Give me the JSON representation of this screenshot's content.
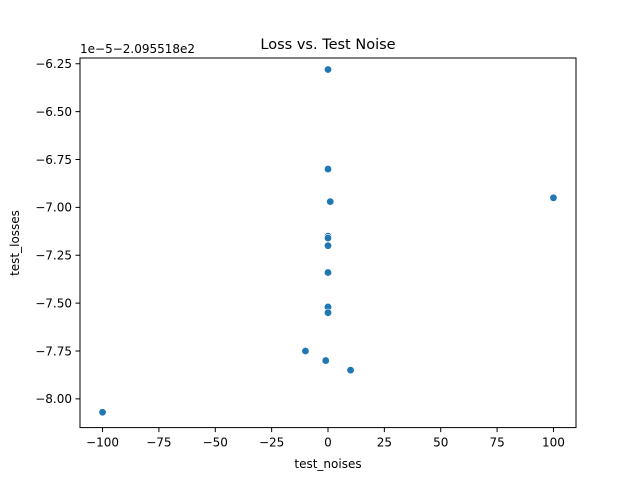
{
  "chart_data": {
    "type": "scatter",
    "title": "Loss vs. Test Noise",
    "xlabel": "test_noises",
    "ylabel": "test_losses",
    "y_offset_text": "1e−5−2.095518e2",
    "xlim": [
      -110,
      110
    ],
    "ylim": [
      -8.15,
      -6.22
    ],
    "xticks": [
      -100,
      -75,
      -50,
      -25,
      0,
      25,
      50,
      75,
      100
    ],
    "xtick_labels": [
      "−100",
      "−75",
      "−50",
      "−25",
      "0",
      "25",
      "50",
      "75",
      "100"
    ],
    "yticks": [
      -8.0,
      -7.75,
      -7.5,
      -7.25,
      -7.0,
      -6.75,
      -6.5,
      -6.25
    ],
    "ytick_labels": [
      "−8.00",
      "−7.75",
      "−7.50",
      "−7.25",
      "−7.00",
      "−6.75",
      "−6.50",
      "−6.25"
    ],
    "grid": false,
    "marker_color": "#1f77b4",
    "points": [
      {
        "x": 0,
        "y": -6.28
      },
      {
        "x": 0,
        "y": -6.8
      },
      {
        "x": 1,
        "y": -6.97
      },
      {
        "x": 100,
        "y": -6.95
      },
      {
        "x": 0,
        "y": -7.15
      },
      {
        "x": 0,
        "y": -7.16
      },
      {
        "x": 0,
        "y": -7.2
      },
      {
        "x": 0,
        "y": -7.34
      },
      {
        "x": 0,
        "y": -7.52
      },
      {
        "x": 0,
        "y": -7.55
      },
      {
        "x": -10,
        "y": -7.75
      },
      {
        "x": -1,
        "y": -7.8
      },
      {
        "x": 10,
        "y": -7.85
      },
      {
        "x": -100,
        "y": -8.07
      }
    ]
  }
}
